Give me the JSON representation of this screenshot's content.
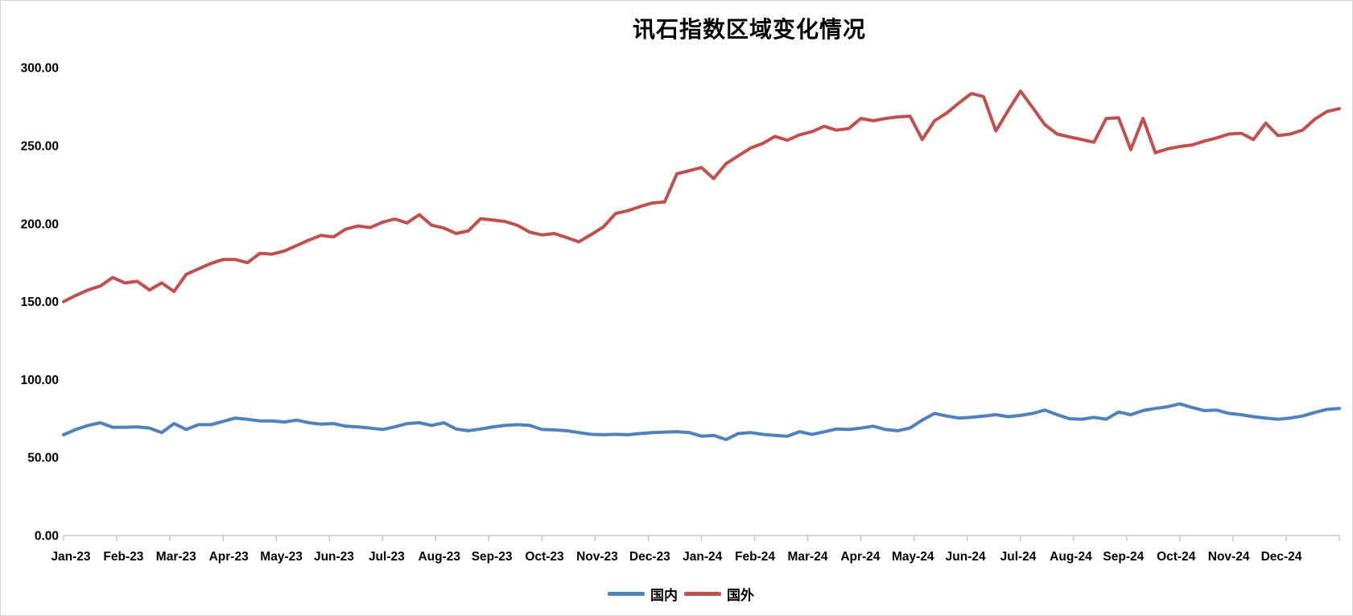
{
  "window": {
    "background": "#ffffff",
    "border_color": "#d6d6d6"
  },
  "chart": {
    "title": "讯石指数区域变化情况",
    "axis_color": "#bfbfbf",
    "label_color": "#000000"
  },
  "chart_data": {
    "type": "line",
    "title": "讯石指数区域变化情况",
    "x_labels": [
      "Jan-23",
      "Feb-23",
      "Mar-23",
      "Apr-23",
      "May-23",
      "Jun-23",
      "Jul-23",
      "Aug-23",
      "Sep-23",
      "Oct-23",
      "Nov-23",
      "Dec-23",
      "Jan-24",
      "Feb-24",
      "Mar-24",
      "Apr-24",
      "May-24",
      "Jun-24",
      "Jul-24",
      "Aug-24",
      "Sep-24",
      "Oct-24",
      "Nov-24",
      "Dec-24"
    ],
    "x_granularity": "weekly",
    "ylim": [
      0,
      300
    ],
    "y_tick_step": 50,
    "y_tick_labels": [
      "0.00",
      "50.00",
      "100.00",
      "150.00",
      "200.00",
      "250.00",
      "300.00"
    ],
    "grid": false,
    "legend_position": "bottom",
    "series": [
      {
        "name": "国内",
        "color": "#4F81BD",
        "values": [
          64.6,
          68,
          70.6,
          72.3,
          69.4,
          69.4,
          69.7,
          68.9,
          66,
          71.8,
          68,
          71.1,
          71.1,
          73.2,
          75.3,
          74.5,
          73.5,
          73.5,
          72.8,
          74,
          72.3,
          71.4,
          71.8,
          70.1,
          69.7,
          68.9,
          68,
          69.7,
          71.8,
          72.3,
          70.6,
          72.3,
          68.3,
          67.2,
          68.3,
          69.7,
          70.6,
          71.1,
          70.6,
          68,
          67.7,
          67.2,
          66,
          64.9,
          64.6,
          64.9,
          64.6,
          65.4,
          66,
          66.3,
          66.6,
          66,
          63.7,
          64.2,
          61.5,
          65.4,
          66,
          64.9,
          64.2,
          63.7,
          66.6,
          64.9,
          66.5,
          68.3,
          68,
          68.9,
          70.1,
          68,
          67.2,
          68.9,
          74,
          78.3,
          76.6,
          75.3,
          75.8,
          76.6,
          77.5,
          76.2,
          77,
          78.3,
          80.4,
          77.5,
          74.9,
          74.6,
          75.8,
          74.6,
          79.2,
          77.5,
          80.1,
          81.5,
          82.6,
          84.4,
          82.1,
          80.1,
          80.4,
          78.3,
          77.5,
          76.2,
          75.3,
          74.6,
          75.3,
          76.6,
          78.9,
          80.9,
          81.5
        ]
      },
      {
        "name": "国外",
        "color": "#C0504D",
        "values": [
          150,
          154,
          157.5,
          160,
          165.5,
          162,
          163,
          157.5,
          162,
          156.5,
          167.5,
          171,
          174.5,
          177,
          177,
          175,
          181,
          180.5,
          182.5,
          186,
          189.5,
          192.5,
          191.5,
          196.5,
          198.5,
          197.5,
          201,
          203,
          200.5,
          205.8,
          199,
          197.2,
          193.7,
          195.4,
          203.2,
          202.3,
          201.4,
          198.9,
          194.6,
          192.8,
          193.7,
          191.1,
          188.4,
          193,
          197.9,
          206.5,
          208.3,
          211,
          213.3,
          214,
          232,
          234,
          236,
          229,
          238.5,
          243.5,
          248.5,
          251.5,
          256,
          253.5,
          257,
          259,
          262.5,
          260,
          261,
          267.5,
          266,
          267.5,
          268.5,
          269,
          254,
          266,
          271,
          277.5,
          283.5,
          281.5,
          259.5,
          272.5,
          285,
          274.5,
          263.5,
          257.5,
          255.7,
          254,
          252.2,
          267.5,
          268,
          247.5,
          267.5,
          245.5,
          248,
          249.5,
          250.5,
          253,
          255,
          257.5,
          258,
          254,
          264.5,
          256.5,
          257.5,
          260,
          267,
          272,
          273.8
        ]
      }
    ]
  }
}
